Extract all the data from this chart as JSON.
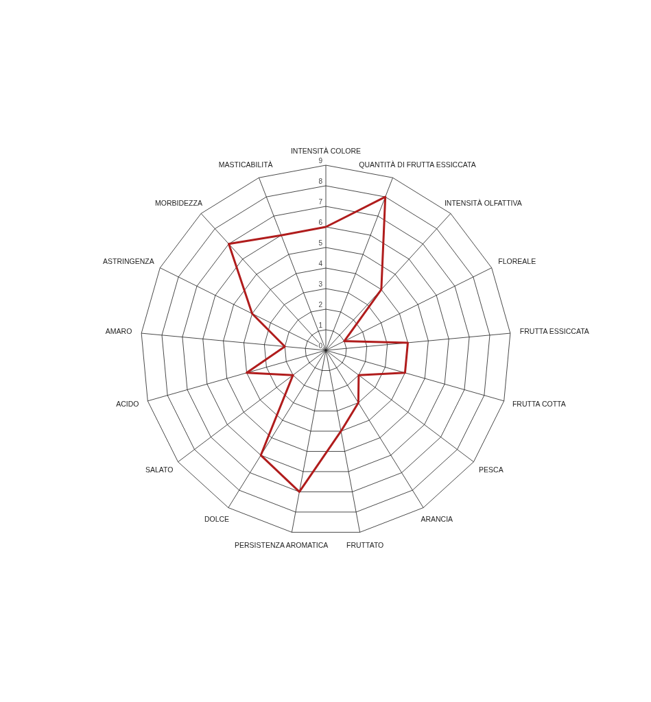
{
  "chart_data": {
    "type": "radar",
    "categories": [
      "INTENSITÀ COLORE",
      "QUANTITÀ DI FRUTTA ESSICCATA",
      "INTENSITÀ OLFATTIVA",
      "FLOREALE",
      "FRUTTA ESSICCATA",
      "FRUTTA COTTA",
      "PESCA",
      "ARANCIA",
      "FRUTTATO",
      "PERSISTENZA AROMATICA",
      "DOLCE",
      "SALATO",
      "ACIDO",
      "AMARO",
      "ASTRINGENZA",
      "MORBIDEZZA",
      "MASTICABILITÀ"
    ],
    "series": [
      {
        "color": "#b01c1c",
        "values": [
          6,
          8,
          4,
          1,
          4,
          4,
          2,
          3,
          4,
          7,
          6,
          2,
          4,
          2,
          4,
          7,
          6
        ]
      }
    ],
    "ylim": [
      0,
      9
    ],
    "yticks": [
      0,
      1,
      2,
      3,
      4,
      5,
      6,
      7,
      8,
      9
    ],
    "grid": true
  }
}
